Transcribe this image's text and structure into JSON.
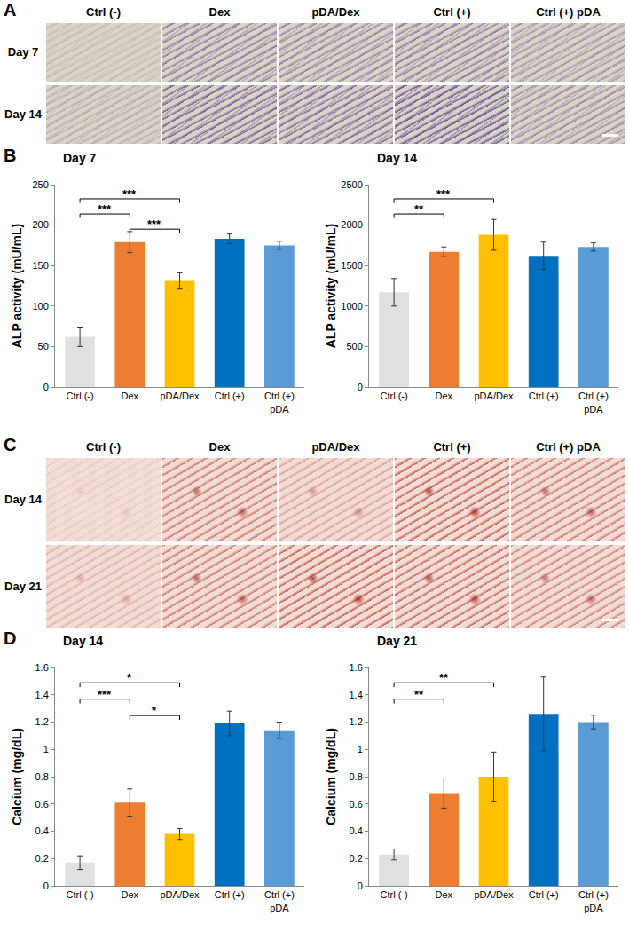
{
  "image_panels": [
    {
      "label": "A",
      "columns": [
        "Ctrl (-)",
        "Dex",
        "pDA/Dex",
        "Ctrl (+)",
        "Ctrl (+) pDA"
      ],
      "rows": [
        "Day 7",
        "Day 14"
      ]
    },
    {
      "label": "C",
      "columns": [
        "Ctrl (-)",
        "Dex",
        "pDA/Dex",
        "Ctrl (+)",
        "Ctrl (+)  pDA"
      ],
      "rows": [
        "Day 14",
        "Day 21"
      ]
    }
  ],
  "chart_data": [
    {
      "panel": "B",
      "type": "bar",
      "title": "Day 7",
      "y_label": "ALP activity (mU/mL)",
      "categories": [
        "Ctrl (-)",
        "Dex",
        "pDA/Dex",
        "Ctrl (+)",
        "Ctrl (+) pDA"
      ],
      "values": [
        62,
        179,
        131,
        183,
        175
      ],
      "errors": [
        12,
        13,
        10,
        6,
        5
      ],
      "colors": [
        "#e0e0e0",
        "#ed7d31",
        "#ffc000",
        "#0070c0",
        "#5b9bd5"
      ],
      "ylim": [
        0,
        250
      ],
      "yticks": [
        0,
        50,
        100,
        150,
        200,
        250
      ],
      "grid": false,
      "significance": [
        {
          "from": 0,
          "to": 2,
          "label": "***"
        },
        {
          "from": 0,
          "to": 1,
          "label": "***"
        },
        {
          "from": 1,
          "to": 2,
          "label": "***"
        }
      ]
    },
    {
      "type": "bar",
      "title": "Day 14",
      "y_label": "ALP activity (mU/mL)",
      "categories": [
        "Ctrl (-)",
        "Dex",
        "pDA/Dex",
        "Ctrl (+)",
        "Ctrl (+) pDA"
      ],
      "values": [
        1170,
        1670,
        1880,
        1620,
        1730
      ],
      "errors": [
        170,
        60,
        190,
        170,
        50
      ],
      "colors": [
        "#e0e0e0",
        "#ed7d31",
        "#ffc000",
        "#0070c0",
        "#5b9bd5"
      ],
      "ylim": [
        0,
        2500
      ],
      "yticks": [
        0,
        500,
        1000,
        1500,
        2000,
        2500
      ],
      "grid": false,
      "significance": [
        {
          "from": 0,
          "to": 2,
          "label": "***"
        },
        {
          "from": 0,
          "to": 1,
          "label": "**"
        }
      ]
    },
    {
      "panel": "D",
      "type": "bar",
      "title": "Day 14",
      "y_label": "Calcium (mg/dL)",
      "categories": [
        "Ctrl (-)",
        "Dex",
        "pDA/Dex",
        "Ctrl (+)",
        "Ctrl (+) pDA"
      ],
      "values": [
        0.17,
        0.61,
        0.38,
        1.19,
        1.14
      ],
      "errors": [
        0.05,
        0.1,
        0.04,
        0.09,
        0.06
      ],
      "colors": [
        "#e0e0e0",
        "#ed7d31",
        "#ffc000",
        "#0070c0",
        "#5b9bd5"
      ],
      "ylim": [
        0,
        1.6
      ],
      "yticks": [
        0,
        0.2,
        0.4,
        0.6,
        0.8,
        1,
        1.2,
        1.4,
        1.6
      ],
      "grid": false,
      "significance": [
        {
          "from": 0,
          "to": 2,
          "label": "*"
        },
        {
          "from": 0,
          "to": 1,
          "label": "***"
        },
        {
          "from": 1,
          "to": 2,
          "label": "*"
        }
      ]
    },
    {
      "type": "bar",
      "title": "Day 21",
      "y_label": "Calcium (mg/dL)",
      "categories": [
        "Ctrl (-)",
        "Dex",
        "pDA/Dex",
        "Ctrl (+)",
        "Ctrl (+) pDA"
      ],
      "values": [
        0.23,
        0.68,
        0.8,
        1.26,
        1.2
      ],
      "errors": [
        0.04,
        0.11,
        0.18,
        0.27,
        0.05
      ],
      "colors": [
        "#e0e0e0",
        "#ed7d31",
        "#ffc000",
        "#0070c0",
        "#5b9bd5"
      ],
      "ylim": [
        0,
        1.6
      ],
      "yticks": [
        0,
        0.2,
        0.4,
        0.6,
        0.8,
        1,
        1.2,
        1.4,
        1.6
      ],
      "grid": false,
      "significance": [
        {
          "from": 0,
          "to": 2,
          "label": "**"
        },
        {
          "from": 0,
          "to": 1,
          "label": "**"
        }
      ]
    }
  ]
}
